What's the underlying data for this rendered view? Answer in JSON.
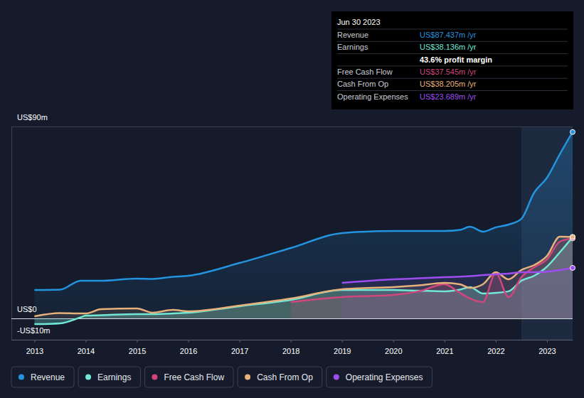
{
  "chart_data": {
    "type": "line",
    "x": [
      2013,
      2013.5,
      2013.9,
      2014,
      2014.3,
      2015,
      2015.3,
      2015.7,
      2016,
      2017,
      2018,
      2019,
      2020,
      2020.5,
      2021,
      2021.3,
      2021.5,
      2021.75,
      2022,
      2022.25,
      2022.5,
      2022.75,
      2023,
      2023.25,
      2023.5
    ],
    "series": [
      {
        "name": "Revenue",
        "color": "#2394df",
        "values": [
          13.3,
          13.5,
          17.7,
          17.7,
          17.7,
          18.7,
          18.5,
          19.5,
          20,
          26,
          33,
          40,
          41,
          41,
          41,
          41.5,
          43,
          40.7,
          42.7,
          44,
          46.7,
          59,
          66,
          77,
          87.437
        ]
      },
      {
        "name": "Earnings",
        "color": "#71e7d6",
        "values": [
          -2.7,
          -2.3,
          0.5,
          1.3,
          1.5,
          2,
          2,
          2.3,
          2.7,
          5.7,
          8.7,
          13.3,
          13.3,
          13,
          12.7,
          13.5,
          14.7,
          11.7,
          12,
          12.7,
          17.7,
          20,
          24.3,
          31,
          38.136
        ]
      },
      {
        "name": "Free Cash Flow",
        "color": "#d1477c",
        "values": [
          null,
          null,
          null,
          null,
          null,
          null,
          null,
          null,
          null,
          null,
          7.7,
          10,
          11,
          12.7,
          16,
          12,
          9.3,
          7.7,
          21.3,
          10,
          19.3,
          24,
          27.7,
          36,
          37.545
        ]
      },
      {
        "name": "Cash From Op",
        "color": "#e6b17a",
        "values": [
          1,
          2.5,
          2.3,
          2.3,
          4.3,
          4.7,
          2.7,
          4,
          3.3,
          6,
          9.3,
          13.7,
          14.7,
          15.5,
          16.7,
          16,
          14.3,
          16,
          21.7,
          18.3,
          22.7,
          25,
          29.3,
          38.3,
          38.205
        ]
      },
      {
        "name": "Operating Expenses",
        "color": "#9e4ef0",
        "values": [
          null,
          null,
          null,
          null,
          null,
          null,
          null,
          null,
          null,
          null,
          null,
          16.7,
          18.3,
          18.8,
          19.3,
          19.6,
          19.8,
          20.3,
          20.7,
          21,
          21.7,
          21.7,
          21.9,
          22.7,
          23.689
        ]
      }
    ],
    "xlim": [
      2012.55,
      2023.5
    ],
    "xticks": [
      2013,
      2014,
      2015,
      2016,
      2017,
      2018,
      2019,
      2020,
      2021,
      2022,
      2023
    ],
    "ylim": [
      -10,
      90
    ],
    "yticks": [
      {
        "value": -10,
        "label": "-US$10m"
      },
      {
        "value": 0,
        "label": "US$0"
      },
      {
        "value": 90,
        "label": "US$90m"
      }
    ],
    "grid": true,
    "legend": "bottom",
    "highlight": [
      2022.5,
      2023.5
    ],
    "tooltip": {
      "title": "Jun 30 2023",
      "rows": [
        {
          "label": "Revenue",
          "value": "US$87.437m /yr",
          "color": "#2394df"
        },
        {
          "label": "Earnings",
          "value": "US$38.136m /yr",
          "color": "#71e7d6"
        },
        {
          "value": "43.6% profit margin",
          "color": "#ffffff"
        },
        {
          "label": "Free Cash Flow",
          "value": "US$37.545m /yr",
          "color": "#d1477c"
        },
        {
          "label": "Cash From Op",
          "value": "US$38.205m /yr",
          "color": "#e6b17a"
        },
        {
          "label": "Operating Expenses",
          "value": "US$23.689m /yr",
          "color": "#9e4ef0"
        }
      ]
    }
  }
}
